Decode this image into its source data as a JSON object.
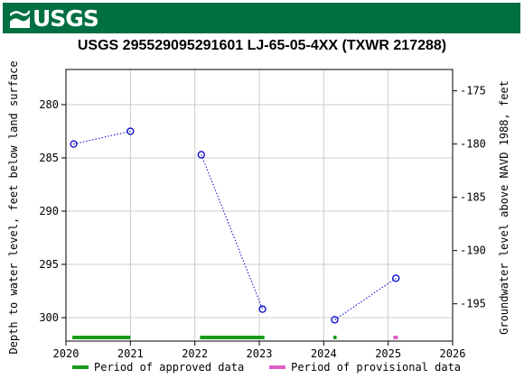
{
  "header": {
    "logo_text": "USGS",
    "logo_icon": "usgs-wave-icon",
    "brand_color": "#006f41"
  },
  "chart_data": {
    "type": "scatter",
    "title": "USGS 295529095291601 LJ-65-05-4XX (TXWR 217288)",
    "ylabel_left": "Depth to water level, feet below land surface",
    "ylabel_right": "Groundwater level above NAVD 1988, feet",
    "xlim": [
      2020,
      2026
    ],
    "ylim_left": [
      302.2,
      276.7
    ],
    "ylim_right": [
      -198.5,
      -173.0
    ],
    "x_ticks": [
      "2020",
      "2021",
      "2022",
      "2023",
      "2024",
      "2025",
      "2026"
    ],
    "y_left_ticks": [
      "280",
      "285",
      "290",
      "295",
      "300"
    ],
    "y_right_ticks": [
      "-175",
      "-180",
      "-185",
      "-190",
      "-195"
    ],
    "grid": true,
    "series": [
      {
        "segments": [
          [
            {
              "x": 2020.12,
              "y": 283.7
            },
            {
              "x": 2021.0,
              "y": 282.5
            }
          ],
          [
            {
              "x": 2022.1,
              "y": 284.7
            },
            {
              "x": 2023.05,
              "y": 299.2
            }
          ],
          [
            {
              "x": 2024.17,
              "y": 300.2
            },
            {
              "x": 2025.12,
              "y": 296.3
            }
          ]
        ],
        "color": "#0000cc",
        "marker": "open-circle",
        "line_style": "dotted"
      }
    ],
    "periods": {
      "approved": [
        [
          2020.1,
          2021.0
        ],
        [
          2022.08,
          2023.08
        ],
        [
          2024.15,
          2024.2
        ]
      ],
      "provisional": [
        [
          2025.08,
          2025.15
        ]
      ]
    },
    "legend": [
      {
        "label": "Period of approved data",
        "color": "#1a9a1a"
      },
      {
        "label": "Period of provisional data",
        "color": "#e060c8"
      }
    ]
  }
}
